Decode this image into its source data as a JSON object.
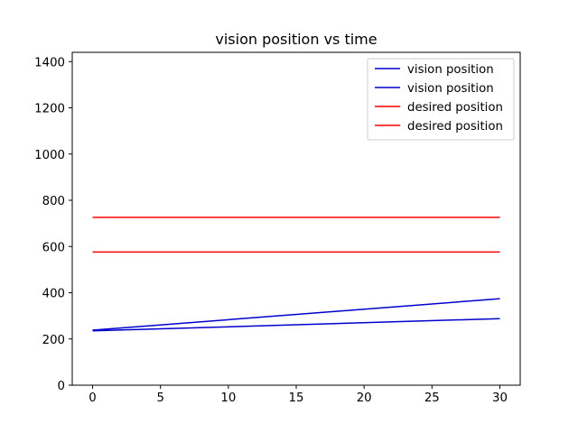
{
  "chart_data": {
    "type": "line",
    "title": "vision position vs time",
    "xlabel": "",
    "ylabel": "",
    "xlim": [
      -1.5,
      31.5
    ],
    "ylim": [
      0,
      1440
    ],
    "x_ticks": [
      0,
      5,
      10,
      15,
      20,
      25,
      30
    ],
    "y_ticks": [
      0,
      200,
      400,
      600,
      800,
      1000,
      1200,
      1400
    ],
    "grid": false,
    "legend_placement": "top-right",
    "series": [
      {
        "name": "vision position",
        "color": "#0000cc",
        "x": [
          0,
          30
        ],
        "y": [
          238,
          374
        ]
      },
      {
        "name": "vision position",
        "color": "#0000cc",
        "x": [
          0,
          30
        ],
        "y": [
          235,
          288
        ]
      },
      {
        "name": "desired position",
        "color": "#ff0000",
        "x": [
          0,
          30
        ],
        "y": [
          726,
          726
        ]
      },
      {
        "name": "desired position",
        "color": "#ff0000",
        "x": [
          0,
          30
        ],
        "y": [
          576,
          576
        ]
      }
    ]
  }
}
